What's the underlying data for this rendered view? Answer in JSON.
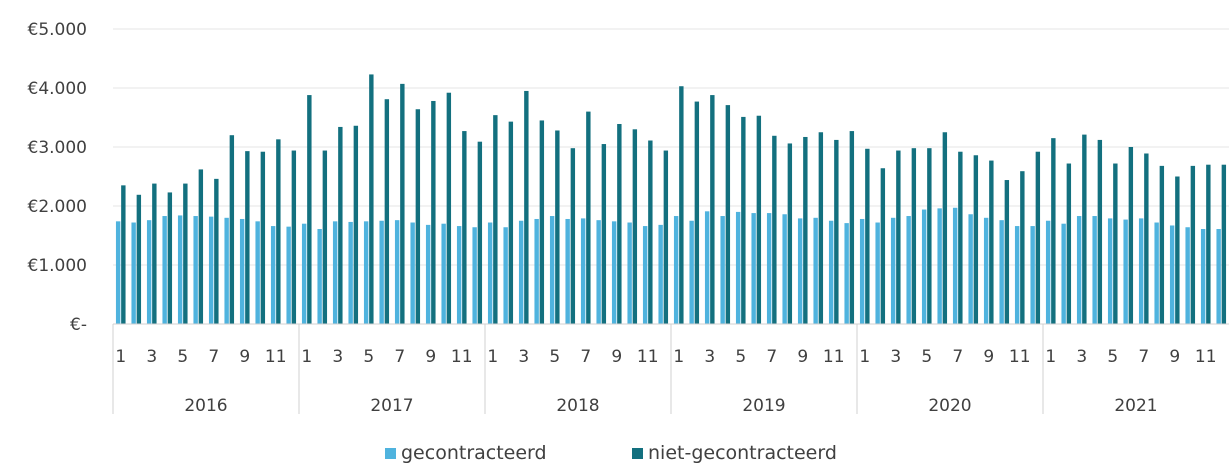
{
  "chart_data": {
    "type": "bar",
    "ylim": [
      0,
      5000
    ],
    "grid": true,
    "legend_position": "bottom",
    "yticks": [
      {
        "value": 5000,
        "label": "€5.000"
      },
      {
        "value": 4000,
        "label": "€4.000"
      },
      {
        "value": 3000,
        "label": "€3.000"
      },
      {
        "value": 2000,
        "label": "€2.000"
      },
      {
        "value": 1000,
        "label": "€1.000"
      },
      {
        "value": 0,
        "label": "€-"
      }
    ],
    "years": [
      "2016",
      "2017",
      "2018",
      "2019",
      "2020",
      "2021"
    ],
    "month_labels": [
      "1",
      "",
      "3",
      "",
      "5",
      "",
      "7",
      "",
      "9",
      "",
      "11",
      ""
    ],
    "series": [
      {
        "name": "gecontracteerd",
        "color": "#4fb3de",
        "values": [
          1740,
          1720,
          1760,
          1830,
          1840,
          1830,
          1820,
          1800,
          1780,
          1740,
          1660,
          1650,
          1700,
          1610,
          1740,
          1730,
          1740,
          1750,
          1760,
          1720,
          1680,
          1700,
          1660,
          1640,
          1720,
          1640,
          1750,
          1780,
          1830,
          1780,
          1790,
          1760,
          1740,
          1720,
          1660,
          1680,
          1830,
          1750,
          1910,
          1830,
          1900,
          1880,
          1880,
          1860,
          1790,
          1800,
          1750,
          1710,
          1780,
          1720,
          1800,
          1830,
          1940,
          1960,
          1970,
          1860,
          1800,
          1760,
          1660,
          1660,
          1750,
          1700,
          1830,
          1830,
          1790,
          1770,
          1790,
          1720,
          1670,
          1640,
          1610,
          1610
        ]
      },
      {
        "name": "niet-gecontracteerd",
        "color": "#13707f",
        "values": [
          2350,
          2190,
          2380,
          2230,
          2380,
          2620,
          2460,
          3200,
          2930,
          2920,
          3130,
          2940,
          3880,
          2940,
          3340,
          3360,
          4230,
          3810,
          4070,
          3640,
          3780,
          3920,
          3270,
          3090,
          3540,
          3430,
          3950,
          3450,
          3280,
          2980,
          3600,
          3050,
          3390,
          3300,
          3110,
          2940,
          4030,
          3770,
          3880,
          3710,
          3510,
          3530,
          3190,
          3060,
          3170,
          3250,
          3120,
          3270,
          2970,
          2640,
          2940,
          2980,
          2980,
          3250,
          2920,
          2860,
          2770,
          2440,
          2590,
          2920,
          3150,
          2720,
          3210,
          3120,
          2720,
          3000,
          2890,
          2680,
          2500,
          2680,
          2700,
          2700
        ]
      }
    ]
  }
}
